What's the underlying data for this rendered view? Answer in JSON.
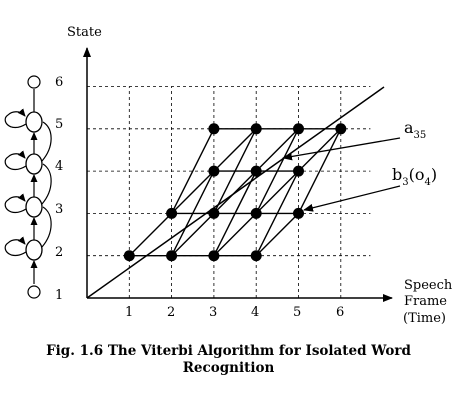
{
  "axes": {
    "y_label": "State",
    "x_label_lines": [
      "Speech",
      "Frame",
      "(Time)"
    ],
    "x_ticks": [
      "1",
      "2",
      "3",
      "4",
      "5",
      "6"
    ],
    "y_ticks": [
      "1",
      "2",
      "3",
      "4",
      "5",
      "6"
    ]
  },
  "annotations": {
    "transition": {
      "main": "a",
      "sub": "35"
    },
    "emission": {
      "main": "b",
      "sub1": "3",
      "mid": "(o",
      "sub2": "4",
      "end": ")"
    }
  },
  "caption": {
    "line1": "Fig. 1.6  The Viterbi Algorithm for Isolated Word",
    "line2": "Recognition"
  },
  "trellis": {
    "nodes": [
      [
        1,
        2
      ],
      [
        2,
        2
      ],
      [
        3,
        2
      ],
      [
        4,
        2
      ],
      [
        2,
        3
      ],
      [
        3,
        3
      ],
      [
        4,
        3
      ],
      [
        5,
        3
      ],
      [
        3,
        4
      ],
      [
        4,
        4
      ],
      [
        5,
        4
      ],
      [
        3,
        5
      ],
      [
        4,
        5
      ],
      [
        5,
        5
      ],
      [
        6,
        5
      ]
    ]
  }
}
